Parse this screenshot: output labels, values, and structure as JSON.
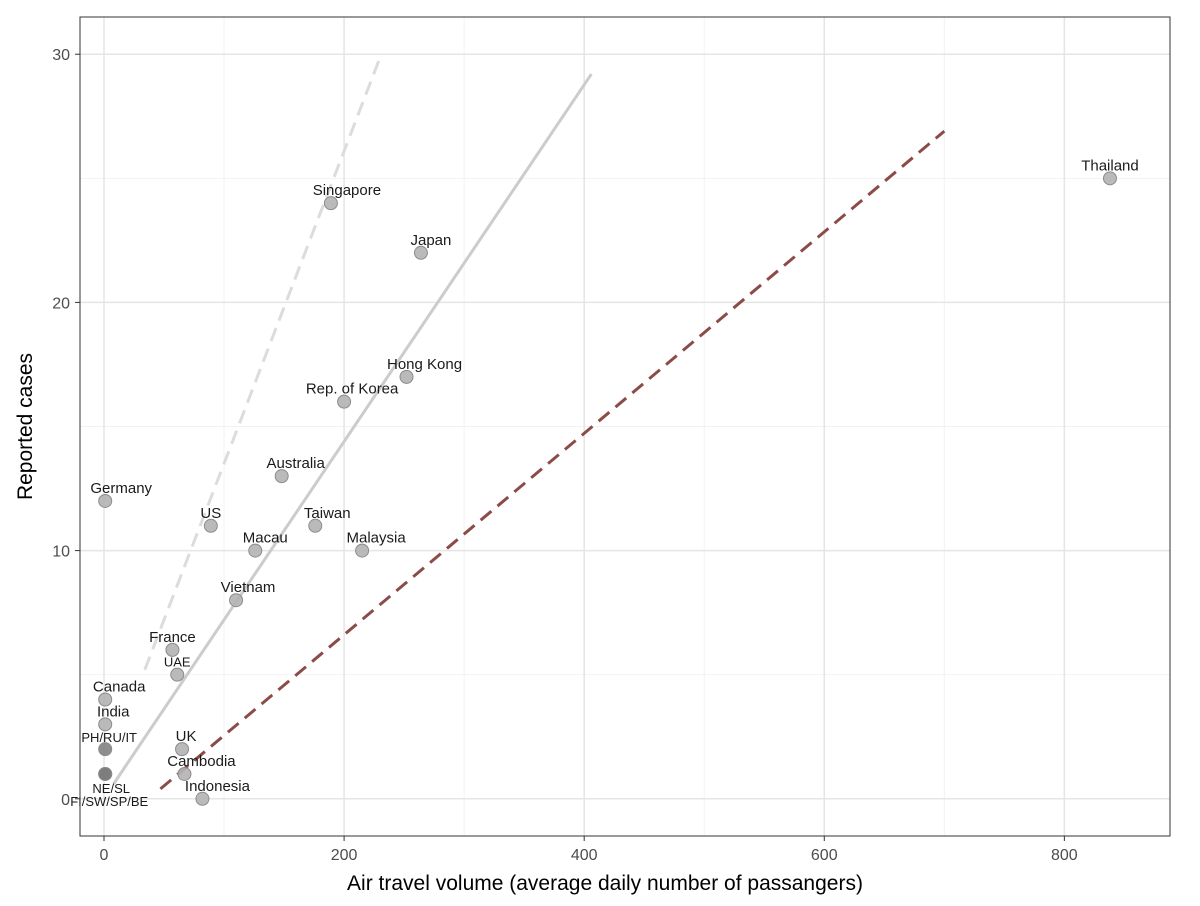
{
  "chart_data": {
    "type": "scatter",
    "title": "",
    "xlabel": "Air travel volume (average daily number of passangers)",
    "ylabel": "Reported cases",
    "xlim": [
      -20,
      888
    ],
    "ylim": [
      -1.5,
      31.5
    ],
    "x_ticks": [
      0,
      200,
      400,
      600,
      800
    ],
    "y_ticks": [
      0,
      10,
      20,
      30
    ],
    "x_tick_labels": [
      "0",
      "200",
      "400",
      "600",
      "800"
    ],
    "y_tick_labels": [
      "0",
      "10",
      "20",
      "30"
    ],
    "grid": true,
    "legend": "none",
    "colors": {
      "point_fill": "#b3b3b3",
      "point_stroke": "#8c8c8c",
      "point_dark_fill": "#7a7a7a",
      "fit_line": "#cccccc",
      "upper_dashed": "#dcdcdc",
      "lower_dashed": "#8b4c48",
      "grid_major": "#e5e5e5",
      "grid_minor": "#f2f2f2",
      "panel_border": "#333333"
    },
    "points": [
      {
        "label": "Thailand",
        "x": 838,
        "y": 25
      },
      {
        "label": "Singapore",
        "x": 189,
        "y": 24
      },
      {
        "label": "Japan",
        "x": 264,
        "y": 22
      },
      {
        "label": "Hong Kong",
        "x": 252,
        "y": 17
      },
      {
        "label": "Rep. of Korea",
        "x": 200,
        "y": 16
      },
      {
        "label": "Australia",
        "x": 148,
        "y": 13
      },
      {
        "label": "Germany",
        "x": 1,
        "y": 12
      },
      {
        "label": "US",
        "x": 89,
        "y": 11
      },
      {
        "label": "Taiwan",
        "x": 176,
        "y": 11
      },
      {
        "label": "Macau",
        "x": 126,
        "y": 10
      },
      {
        "label": "Malaysia",
        "x": 215,
        "y": 10
      },
      {
        "label": "Vietnam",
        "x": 110,
        "y": 8
      },
      {
        "label": "France",
        "x": 57,
        "y": 6
      },
      {
        "label": "UAE",
        "x": 61,
        "y": 5
      },
      {
        "label": "Canada",
        "x": 1,
        "y": 4
      },
      {
        "label": "India",
        "x": 1,
        "y": 3
      },
      {
        "label": "PH/RU/IT",
        "x": 1,
        "y": 2,
        "dark": true
      },
      {
        "label": "UK",
        "x": 65,
        "y": 2
      },
      {
        "label": "Cambodia",
        "x": 67,
        "y": 1
      },
      {
        "label": "NE/SL",
        "x": 1,
        "y": 1,
        "dark": true
      },
      {
        "label": "FI/SW/SP/BE",
        "x": 1,
        "y": 1,
        "dark": true
      },
      {
        "label": "Indonesia",
        "x": 82,
        "y": 0
      }
    ],
    "lines": [
      {
        "style": "solid",
        "color_key": "fit_line",
        "x": [
          8,
          406
        ],
        "y": [
          0.6,
          29.2
        ]
      },
      {
        "style": "dashed",
        "color_key": "upper_dashed",
        "x": [
          34,
          231
        ],
        "y": [
          5.2,
          30
        ]
      },
      {
        "style": "dashed",
        "color_key": "lower_dashed",
        "x": [
          47,
          700
        ],
        "y": [
          0.4,
          26.9
        ]
      }
    ]
  }
}
